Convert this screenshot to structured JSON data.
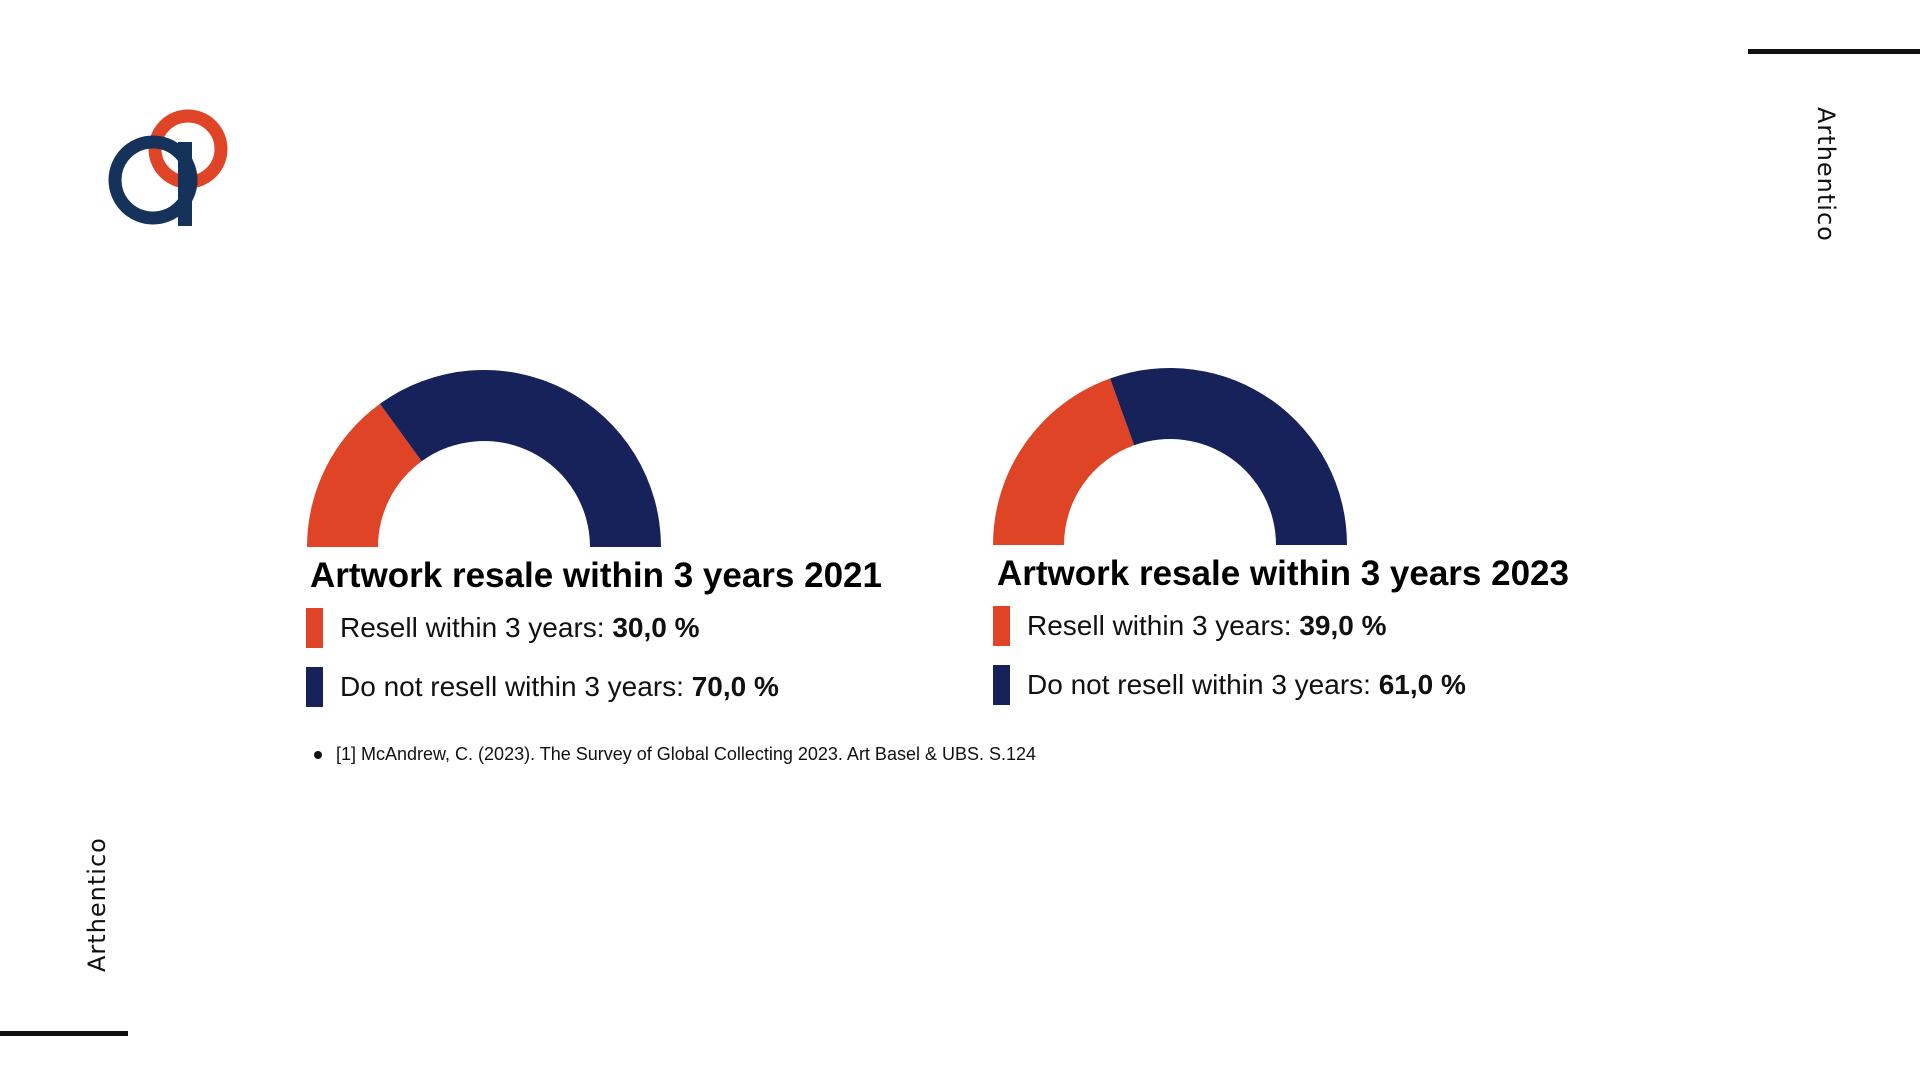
{
  "brand": {
    "name": "Arthentico",
    "colors": {
      "orange": "#E04427",
      "navy": "#18225A",
      "logo_navy": "#15325A"
    }
  },
  "chart_data": [
    {
      "type": "pie",
      "style": "half-donut",
      "title": "Artwork resale within 3 years 2021",
      "categories": [
        "Resell within 3 years",
        "Do not resell within 3 years"
      ],
      "values": [
        30.0,
        70.0
      ],
      "value_labels": [
        "30,0 %",
        "70,0 %"
      ],
      "colors": [
        "#E04427",
        "#18225A"
      ],
      "legend_position": "bottom"
    },
    {
      "type": "pie",
      "style": "half-donut",
      "title": "Artwork resale within 3 years 2023",
      "categories": [
        "Resell within 3 years",
        "Do not resell within 3 years"
      ],
      "values": [
        39.0,
        61.0
      ],
      "value_labels": [
        "39,0 %",
        "61,0 %"
      ],
      "colors": [
        "#E04427",
        "#18225A"
      ],
      "legend_position": "bottom"
    }
  ],
  "footnote": "[1] McAndrew, C. (2023). The Survey of Global Collecting 2023. Art Basel & UBS. S.124"
}
